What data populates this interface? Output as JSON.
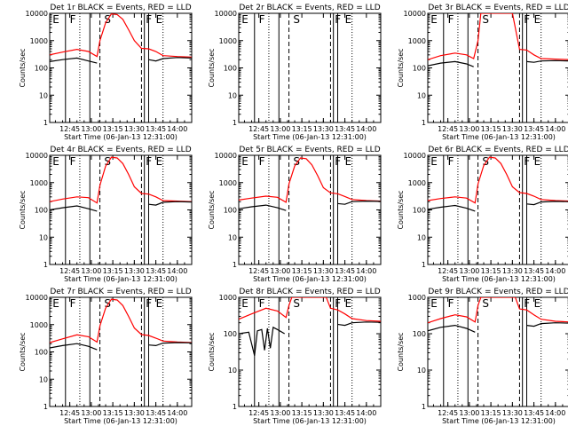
{
  "chart_data": [
    {
      "title": "Det 1r BLACK = Events, RED = LLD",
      "type": "line",
      "ylabel": "Counts/sec",
      "xlabel": "Start Time (06-Jan-13 12:31:00)",
      "x_tick_labels": [
        "12:45",
        "13:00",
        "13:15",
        "13:30",
        "13:45",
        "14:00"
      ],
      "y_tick_labels": [
        "1",
        "10",
        "100",
        "1000",
        "10000"
      ],
      "ylim": [
        1,
        10000
      ],
      "y_scale": "log",
      "xlim": [
        "12:31",
        "14:10"
      ],
      "markers": [
        "E",
        "F",
        "S",
        "F",
        "E"
      ],
      "vlines": {
        "solid": [
          "12:42",
          "12:59",
          "13:37",
          "13:40"
        ],
        "dashed": [
          "13:06",
          "13:35"
        ],
        "dotted": [
          "12:52",
          "13:50"
        ]
      },
      "series": [
        {
          "name": "RED = LLD",
          "color": "#ff0000",
          "x": [
            "12:31",
            "12:40",
            "12:50",
            "12:58",
            "13:04",
            "13:06",
            "13:10",
            "13:14",
            "13:18",
            "13:22",
            "13:26",
            "13:30",
            "13:35",
            "13:40",
            "13:45",
            "13:50",
            "14:00",
            "14:10"
          ],
          "values": [
            300,
            380,
            480,
            400,
            260,
            1000,
            4500,
            9500,
            9000,
            6000,
            2500,
            1000,
            520,
            500,
            400,
            280,
            260,
            250
          ]
        },
        {
          "name": "BLACK = Events",
          "color": "#000000",
          "x": [
            "12:31",
            "12:40",
            "12:50",
            "12:58",
            "13:04",
            "13:06",
            "13:35",
            "13:40",
            "13:45",
            "13:50",
            "14:00",
            "14:10"
          ],
          "values": [
            170,
            200,
            230,
            180,
            150,
            null,
            null,
            200,
            180,
            220,
            240,
            230
          ]
        }
      ]
    },
    {
      "title": "Det 2r BLACK = Events, RED = LLD",
      "type": "line",
      "ylabel": "Counts/sec",
      "xlabel": "Start Time (06-Jan-13 12:31:00)",
      "x_tick_labels": [
        "12:45",
        "13:00",
        "13:15",
        "13:30",
        "13:45",
        "14:00"
      ],
      "y_tick_labels": [
        "1",
        "10",
        "100",
        "1000",
        "10000"
      ],
      "ylim": [
        1,
        10000
      ],
      "y_scale": "log",
      "xlim": [
        "12:31",
        "14:10"
      ],
      "markers": [
        "E",
        "F",
        "S",
        "F",
        "E"
      ],
      "vlines": {
        "solid": [
          "12:42",
          "12:59",
          "13:37",
          "13:40"
        ],
        "dashed": [
          "13:06",
          "13:35"
        ],
        "dotted": [
          "12:52",
          "13:50"
        ]
      },
      "series": [
        {
          "name": "RED = LLD",
          "color": "#ff0000",
          "x": [],
          "values": []
        },
        {
          "name": "BLACK = Events",
          "color": "#000000",
          "x": [],
          "values": []
        }
      ]
    },
    {
      "title": "Det 3r BLACK = Events, RED = LLD",
      "type": "line",
      "ylabel": "Counts/sec",
      "xlabel": "Start Time (06-Jan-13 12:31:00)",
      "x_tick_labels": [
        "12:45",
        "13:00",
        "13:15",
        "13:30",
        "13:45",
        "14:00"
      ],
      "y_tick_labels": [
        "1",
        "10",
        "100",
        "1000",
        "10000"
      ],
      "ylim": [
        1,
        10000
      ],
      "y_scale": "log",
      "xlim": [
        "12:31",
        "14:10"
      ],
      "markers": [
        "E",
        "F",
        "S",
        "F",
        "E"
      ],
      "vlines": {
        "solid": [
          "12:42",
          "12:59",
          "13:37",
          "13:40"
        ],
        "dashed": [
          "13:06",
          "13:35"
        ],
        "dotted": [
          "12:52",
          "13:50"
        ]
      },
      "series": [
        {
          "name": "RED = LLD",
          "color": "#ff0000",
          "x": [
            "12:31",
            "12:40",
            "12:50",
            "12:58",
            "13:03",
            "13:06",
            "13:08",
            "13:20",
            "13:30",
            "13:35",
            "13:40",
            "13:45",
            "13:50",
            "14:00",
            "14:10"
          ],
          "values": [
            200,
            280,
            350,
            300,
            220,
            1000,
            10000,
            10000,
            10000,
            480,
            450,
            300,
            220,
            210,
            200
          ]
        },
        {
          "name": "BLACK = Events",
          "color": "#000000",
          "x": [
            "12:31",
            "12:40",
            "12:50",
            "12:58",
            "13:03",
            "13:06",
            "13:35",
            "13:40",
            "13:45",
            "13:50",
            "14:00",
            "14:10"
          ],
          "values": [
            120,
            150,
            170,
            140,
            110,
            null,
            null,
            170,
            160,
            180,
            185,
            180
          ]
        }
      ]
    },
    {
      "title": "Det 4r BLACK = Events, RED = LLD",
      "type": "line",
      "ylabel": "Counts/sec",
      "xlabel": "Start Time (06-Jan-13 12:31:00)",
      "x_tick_labels": [
        "12:45",
        "13:00",
        "13:15",
        "13:30",
        "13:45",
        "14:00"
      ],
      "y_tick_labels": [
        "1",
        "10",
        "100",
        "1000",
        "10000"
      ],
      "ylim": [
        1,
        10000
      ],
      "y_scale": "log",
      "xlim": [
        "12:31",
        "14:10"
      ],
      "markers": [
        "E",
        "F",
        "S",
        "F",
        "E"
      ],
      "vlines": {
        "solid": [
          "12:42",
          "12:59",
          "13:37",
          "13:40"
        ],
        "dashed": [
          "13:06",
          "13:35"
        ],
        "dotted": [
          "12:52",
          "13:50"
        ]
      },
      "series": [
        {
          "name": "RED = LLD",
          "color": "#ff0000",
          "x": [
            "12:31",
            "12:40",
            "12:50",
            "12:58",
            "13:04",
            "13:06",
            "13:10",
            "13:14",
            "13:18",
            "13:22",
            "13:26",
            "13:30",
            "13:35",
            "13:40",
            "13:45",
            "13:50",
            "14:00",
            "14:10"
          ],
          "values": [
            200,
            250,
            300,
            280,
            180,
            800,
            4000,
            8500,
            8000,
            5000,
            2000,
            700,
            400,
            380,
            300,
            220,
            210,
            200
          ]
        },
        {
          "name": "BLACK = Events",
          "color": "#000000",
          "x": [
            "12:31",
            "12:40",
            "12:50",
            "12:58",
            "13:04",
            "13:06",
            "13:35",
            "13:40",
            "13:45",
            "13:50",
            "14:00",
            "14:10"
          ],
          "values": [
            100,
            120,
            140,
            110,
            90,
            null,
            null,
            160,
            150,
            190,
            200,
            195
          ]
        }
      ]
    },
    {
      "title": "Det 5r BLACK = Events, RED = LLD",
      "type": "line",
      "ylabel": "Counts/sec",
      "xlabel": "Start Time (06-Jan-13 12:31:00)",
      "x_tick_labels": [
        "12:45",
        "13:00",
        "13:15",
        "13:30",
        "13:45",
        "14:00"
      ],
      "y_tick_labels": [
        "1",
        "10",
        "100",
        "1000",
        "10000"
      ],
      "ylim": [
        1,
        10000
      ],
      "y_scale": "log",
      "xlim": [
        "12:31",
        "14:10"
      ],
      "markers": [
        "E",
        "F",
        "S",
        "F",
        "E"
      ],
      "vlines": {
        "solid": [
          "12:42",
          "12:59",
          "13:37",
          "13:40"
        ],
        "dashed": [
          "13:06",
          "13:35"
        ],
        "dotted": [
          "12:52",
          "13:50"
        ]
      },
      "series": [
        {
          "name": "RED = LLD",
          "color": "#ff0000",
          "x": [
            "12:31",
            "12:40",
            "12:50",
            "12:58",
            "13:04",
            "13:06",
            "13:10",
            "13:14",
            "13:18",
            "13:22",
            "13:26",
            "13:30",
            "13:35",
            "13:40",
            "13:45",
            "13:50",
            "14:00",
            "14:10"
          ],
          "values": [
            230,
            270,
            320,
            290,
            190,
            900,
            4000,
            8000,
            7500,
            4500,
            1800,
            650,
            420,
            390,
            310,
            240,
            220,
            210
          ]
        },
        {
          "name": "BLACK = Events",
          "color": "#000000",
          "x": [
            "12:31",
            "12:40",
            "12:50",
            "12:58",
            "13:04",
            "13:06",
            "13:35",
            "13:40",
            "13:45",
            "13:50",
            "14:00",
            "14:10"
          ],
          "values": [
            110,
            130,
            150,
            120,
            95,
            null,
            null,
            170,
            160,
            200,
            210,
            205
          ]
        }
      ]
    },
    {
      "title": "Det 6r BLACK = Events, RED = LLD",
      "type": "line",
      "ylabel": "Counts/sec",
      "xlabel": "Start Time (06-Jan-13 12:31:00)",
      "x_tick_labels": [
        "12:45",
        "13:00",
        "13:15",
        "13:30",
        "13:45",
        "14:00"
      ],
      "y_tick_labels": [
        "1",
        "10",
        "100",
        "1000",
        "10000"
      ],
      "ylim": [
        1,
        10000
      ],
      "y_scale": "log",
      "xlim": [
        "12:31",
        "14:10"
      ],
      "markers": [
        "E",
        "F",
        "S",
        "F",
        "E"
      ],
      "vlines": {
        "solid": [
          "12:42",
          "12:59",
          "13:37",
          "13:40"
        ],
        "dashed": [
          "13:06",
          "13:35"
        ],
        "dotted": [
          "12:52",
          "13:50"
        ]
      },
      "series": [
        {
          "name": "RED = LLD",
          "color": "#ff0000",
          "x": [
            "12:31",
            "12:40",
            "12:50",
            "12:58",
            "13:04",
            "13:06",
            "13:10",
            "13:14",
            "13:18",
            "13:22",
            "13:26",
            "13:30",
            "13:35",
            "13:40",
            "13:45",
            "13:50",
            "14:00",
            "14:10"
          ],
          "values": [
            220,
            260,
            300,
            270,
            180,
            900,
            4200,
            8500,
            8000,
            5000,
            2000,
            700,
            430,
            400,
            320,
            240,
            220,
            210
          ]
        },
        {
          "name": "BLACK = Events",
          "color": "#000000",
          "x": [
            "12:31",
            "12:40",
            "12:50",
            "12:58",
            "13:04",
            "13:06",
            "13:35",
            "13:40",
            "13:45",
            "13:50",
            "14:00",
            "14:10"
          ],
          "values": [
            105,
            125,
            145,
            115,
            90,
            null,
            null,
            165,
            155,
            195,
            205,
            200
          ]
        }
      ]
    },
    {
      "title": "Det 7r BLACK = Events, RED = LLD",
      "type": "line",
      "ylabel": "Counts/sec",
      "xlabel": "Start Time (06-Jan-13 12:31:00)",
      "x_tick_labels": [
        "12:45",
        "13:00",
        "13:15",
        "13:30",
        "13:45",
        "14:00"
      ],
      "y_tick_labels": [
        "1",
        "10",
        "100",
        "1000",
        "10000"
      ],
      "ylim": [
        1,
        10000
      ],
      "y_scale": "log",
      "xlim": [
        "12:31",
        "14:10"
      ],
      "markers": [
        "E",
        "F",
        "S",
        "F",
        "E"
      ],
      "vlines": {
        "solid": [
          "12:42",
          "12:59",
          "13:37",
          "13:40"
        ],
        "dashed": [
          "13:06",
          "13:35"
        ],
        "dotted": [
          "12:52",
          "13:50"
        ]
      },
      "series": [
        {
          "name": "RED = LLD",
          "color": "#ff0000",
          "x": [
            "12:31",
            "12:40",
            "12:50",
            "12:58",
            "13:04",
            "13:06",
            "13:10",
            "13:14",
            "13:18",
            "13:22",
            "13:26",
            "13:30",
            "13:35",
            "13:40",
            "13:45",
            "13:50",
            "14:00",
            "14:10"
          ],
          "values": [
            220,
            300,
            420,
            360,
            230,
            900,
            4000,
            8500,
            8000,
            5000,
            2000,
            750,
            430,
            400,
            320,
            250,
            230,
            220
          ]
        },
        {
          "name": "BLACK = Events",
          "color": "#000000",
          "x": [
            "12:31",
            "12:40",
            "12:50",
            "12:58",
            "13:04",
            "13:06",
            "13:35",
            "13:40",
            "13:45",
            "13:50",
            "14:00",
            "14:10"
          ],
          "values": [
            140,
            170,
            200,
            160,
            120,
            null,
            null,
            180,
            170,
            210,
            220,
            215
          ]
        }
      ]
    },
    {
      "title": "Det 8r BLACK = Events, RED = LLD",
      "type": "line",
      "ylabel": "Counts/sec",
      "xlabel": "Start Time (06-Jan-13 12:31:00)",
      "x_tick_labels": [
        "12:45",
        "13:00",
        "13:15",
        "13:30",
        "13:45",
        "14:00"
      ],
      "y_tick_labels": [
        "1",
        "10",
        "100",
        "1000"
      ],
      "ylim": [
        1,
        1000
      ],
      "y_scale": "log",
      "xlim": [
        "12:31",
        "14:10"
      ],
      "markers": [
        "E",
        "F",
        "S",
        "F",
        "E"
      ],
      "vlines": {
        "solid": [
          "12:42",
          "12:59",
          "13:37",
          "13:40"
        ],
        "dashed": [
          "13:06",
          "13:35"
        ],
        "dotted": [
          "12:52",
          "13:50"
        ]
      },
      "series": [
        {
          "name": "RED = LLD",
          "color": "#ff0000",
          "x": [
            "12:31",
            "12:40",
            "12:50",
            "12:58",
            "13:04",
            "13:06",
            "13:08",
            "13:20",
            "13:32",
            "13:35",
            "13:40",
            "13:45",
            "13:50",
            "14:00",
            "14:10"
          ],
          "values": [
            250,
            350,
            500,
            420,
            280,
            600,
            1000,
            1000,
            1000,
            500,
            450,
            350,
            260,
            230,
            220
          ]
        },
        {
          "name": "BLACK = Events",
          "color": "#000000",
          "x": [
            "12:31",
            "12:38",
            "12:42",
            "12:44",
            "12:47",
            "12:49",
            "12:51",
            "12:53",
            "12:55",
            "12:58",
            "13:03",
            "13:06",
            "13:35",
            "13:40",
            "13:45",
            "13:50",
            "14:00",
            "14:10"
          ],
          "values": [
            100,
            110,
            25,
            120,
            130,
            35,
            140,
            40,
            150,
            130,
            100,
            null,
            null,
            180,
            170,
            200,
            210,
            205
          ]
        }
      ]
    },
    {
      "title": "Det 9r BLACK = Events, RED = LLD",
      "type": "line",
      "ylabel": "Counts/sec",
      "xlabel": "Start Time (06-Jan-13 12:31:00)",
      "x_tick_labels": [
        "12:45",
        "13:00",
        "13:15",
        "13:30",
        "13:45",
        "14:00"
      ],
      "y_tick_labels": [
        "1",
        "10",
        "100",
        "1000"
      ],
      "ylim": [
        1,
        1000
      ],
      "y_scale": "log",
      "xlim": [
        "12:31",
        "14:10"
      ],
      "markers": [
        "E",
        "F",
        "S",
        "F",
        "E"
      ],
      "vlines": {
        "solid": [
          "12:42",
          "12:59",
          "13:37",
          "13:40"
        ],
        "dashed": [
          "13:06",
          "13:35"
        ],
        "dotted": [
          "12:52",
          "13:50"
        ]
      },
      "series": [
        {
          "name": "RED = LLD",
          "color": "#ff0000",
          "x": [
            "12:31",
            "12:40",
            "12:50",
            "12:58",
            "13:04",
            "13:06",
            "13:08",
            "13:20",
            "13:32",
            "13:35",
            "13:40",
            "13:45",
            "13:50",
            "14:00",
            "14:10"
          ],
          "values": [
            200,
            260,
            330,
            290,
            210,
            600,
            1000,
            1000,
            1000,
            480,
            450,
            330,
            250,
            220,
            210
          ]
        },
        {
          "name": "BLACK = Events",
          "color": "#000000",
          "x": [
            "12:31",
            "12:40",
            "12:50",
            "12:58",
            "13:04",
            "13:06",
            "13:35",
            "13:40",
            "13:45",
            "13:50",
            "14:00",
            "14:10"
          ],
          "values": [
            120,
            150,
            170,
            140,
            110,
            null,
            null,
            170,
            160,
            190,
            200,
            195
          ]
        }
      ]
    }
  ]
}
